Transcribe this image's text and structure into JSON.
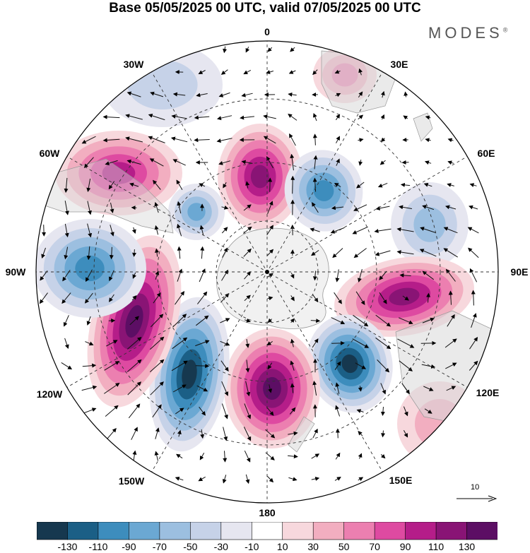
{
  "header": {
    "title": "Base 05/05/2025 00 UTC, valid 07/05/2025 00 UTC",
    "brand": "MODES",
    "brand_mark": "®"
  },
  "map": {
    "projection": "south polar stereographic",
    "longitude_labels": {
      "top": "0",
      "top_right": "30E",
      "right_upper": "60E",
      "right": "90E",
      "right_lower": "120E",
      "bottom_right": "150E",
      "bottom": "180",
      "bottom_left": "150W",
      "left_lower": "120W",
      "left": "90W",
      "left_upper": "60W",
      "top_left": "30W"
    },
    "anomaly_centers": [
      {
        "sign": "positive",
        "lon": "0",
        "value": 110
      },
      {
        "sign": "negative",
        "lon": "45E",
        "value": -90
      },
      {
        "sign": "negative",
        "lon": "70E",
        "value": -50
      },
      {
        "sign": "positive",
        "lon": "100E",
        "value": 110
      },
      {
        "sign": "positive",
        "lon": "30E",
        "value": 50
      },
      {
        "sign": "negative",
        "lon": "140E",
        "value": -130
      },
      {
        "sign": "positive",
        "lon": "180",
        "value": 130
      },
      {
        "sign": "negative",
        "lon": "150W",
        "value": -130
      },
      {
        "sign": "positive",
        "lon": "120W",
        "value": 130
      },
      {
        "sign": "negative",
        "lon": "90W",
        "value": -90
      },
      {
        "sign": "negative",
        "lon": "60W",
        "value": -70
      },
      {
        "sign": "positive",
        "lon": "60W",
        "value": 90
      },
      {
        "sign": "negative",
        "lon": "30W",
        "value": -30
      },
      {
        "sign": "positive",
        "lon": "120E",
        "value": 30
      }
    ]
  },
  "vector_scale": {
    "label": "10"
  },
  "colorbar": {
    "colors": [
      "#16384f",
      "#1b5f86",
      "#3d8dbd",
      "#6ba8d3",
      "#9cbfe0",
      "#c6d2e8",
      "#e6e6f0",
      "#ffffff",
      "#f7d8dd",
      "#f2aec0",
      "#ec7fb0",
      "#de4aa1",
      "#b51d89",
      "#891475",
      "#5c0e64"
    ],
    "tick_labels": [
      "-130",
      "-110",
      "-90",
      "-70",
      "-50",
      "-30",
      "-10",
      "10",
      "30",
      "50",
      "70",
      "90",
      "110",
      "130"
    ]
  }
}
